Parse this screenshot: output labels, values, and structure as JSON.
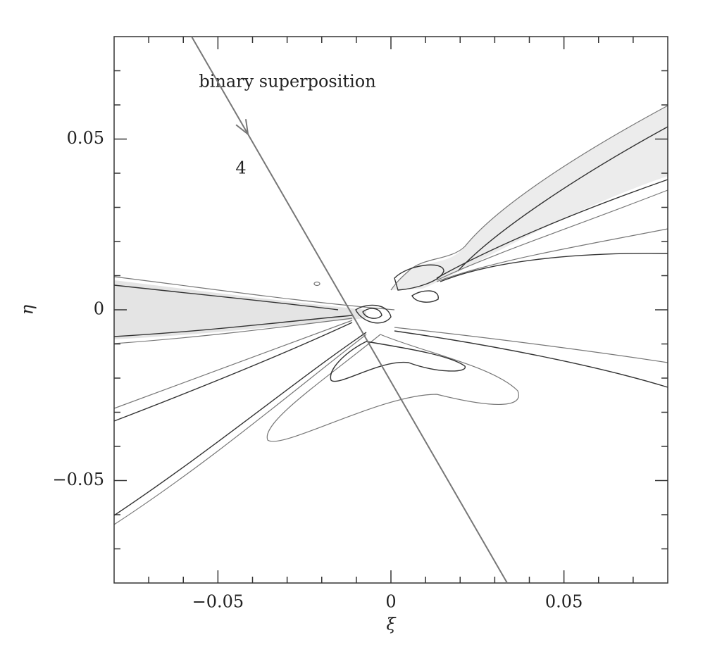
{
  "chart_data": {
    "type": "contour",
    "annotations": [
      "binary superposition",
      "4"
    ],
    "xlabel": "ξ",
    "ylabel": "η",
    "xlim": [
      -0.08,
      0.08
    ],
    "ylim": [
      -0.08,
      0.08
    ],
    "xticks": [
      {
        "value": -0.05,
        "label": "−0.05"
      },
      0,
      0.05
    ],
    "yticks": [
      {
        "value": -0.05,
        "label": "−0.05"
      },
      0,
      0.05
    ],
    "xminorticks": [
      -0.07,
      -0.06,
      -0.04,
      -0.03,
      -0.02,
      -0.01,
      0.01,
      0.02,
      0.03,
      0.04,
      0.06,
      0.07
    ],
    "yminorticks": [
      -0.07,
      -0.06,
      -0.04,
      -0.03,
      -0.02,
      -0.01,
      0.01,
      0.02,
      0.03,
      0.04,
      0.06,
      0.07
    ],
    "trajectory": {
      "x": [
        -0.0576,
        0.0336
      ],
      "y": [
        0.08,
        -0.08
      ]
    }
  }
}
